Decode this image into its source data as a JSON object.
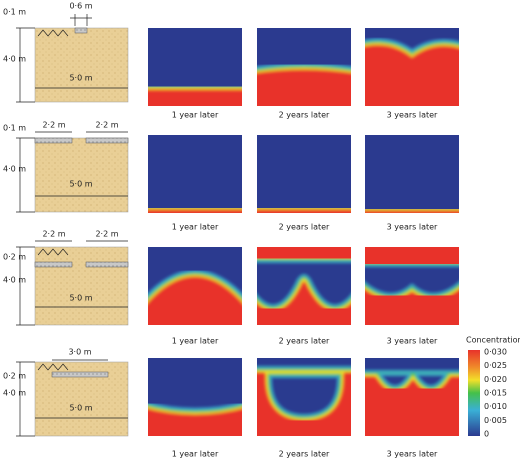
{
  "panels": [
    {
      "labels": {
        "top_depth": "0·1 m",
        "width_top": "0·6 m",
        "depth": "4·0 m",
        "width": "5·0 m"
      },
      "captions": [
        "1 year later",
        "2 years later",
        "3 years later"
      ]
    },
    {
      "labels": {
        "top_depth": "0·1 m",
        "left_slab": "2·2 m",
        "right_slab": "2·2 m",
        "depth": "4·0 m",
        "width": "5·0 m"
      },
      "captions": [
        "1 year later",
        "2 years later",
        "3 years later"
      ]
    },
    {
      "labels": {
        "top_depth": "0·2 m",
        "left_slab": "2·2 m",
        "right_slab": "2·2 m",
        "depth": "4·0 m",
        "width": "5·0 m"
      },
      "captions": [
        "1 year later",
        "2 years later",
        "3 years later"
      ]
    },
    {
      "labels": {
        "top_depth": "0·2 m",
        "slab": "3·0 m",
        "depth": "4·0 m",
        "width": "5·0 m"
      },
      "captions": [
        "1 year later",
        "2 years later",
        "3 years later"
      ]
    }
  ],
  "colorbar": {
    "title": "Concentration",
    "ticks": [
      "0·030",
      "0·025",
      "0·020",
      "0·015",
      "0·010",
      "0·005",
      "0"
    ]
  }
}
